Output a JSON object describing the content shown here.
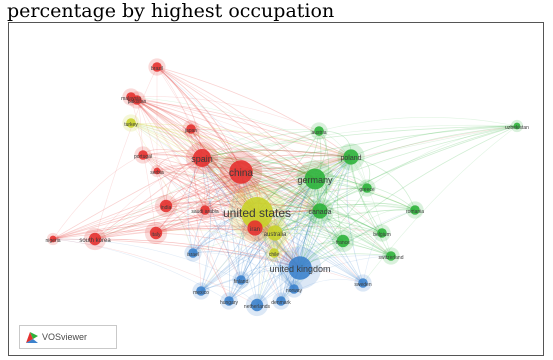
{
  "caption": "percentage by highest occupation",
  "logo": {
    "text": "VOSviewer",
    "icon": "vosviewer-logo-icon"
  },
  "colors": {
    "red": "#e4312f",
    "green": "#2eb23b",
    "blue": "#3c82cc",
    "yellow": "#c9d12a",
    "background": "#ffffff"
  },
  "network": {
    "nodes": [
      {
        "id": "united-states",
        "label": "united states",
        "cluster": "yellow",
        "weight": 10
      },
      {
        "id": "china",
        "label": "china",
        "cluster": "red",
        "weight": 7
      },
      {
        "id": "united-kingdom",
        "label": "united kingdom",
        "cluster": "blue",
        "weight": 7
      },
      {
        "id": "germany",
        "label": "germany",
        "cluster": "green",
        "weight": 6
      },
      {
        "id": "spain",
        "label": "spain",
        "cluster": "red",
        "weight": 5
      },
      {
        "id": "iran",
        "label": "iran",
        "cluster": "red",
        "weight": 4
      },
      {
        "id": "poland",
        "label": "poland",
        "cluster": "green",
        "weight": 4
      },
      {
        "id": "canada",
        "label": "canada",
        "cluster": "green",
        "weight": 4
      },
      {
        "id": "australia",
        "label": "australia",
        "cluster": "yellow",
        "weight": 4
      },
      {
        "id": "south-korea",
        "label": "south korea",
        "cluster": "red",
        "weight": 3
      },
      {
        "id": "india",
        "label": "india",
        "cluster": "red",
        "weight": 3
      },
      {
        "id": "italy",
        "label": "italy",
        "cluster": "red",
        "weight": 3
      },
      {
        "id": "france",
        "label": "france",
        "cluster": "green",
        "weight": 3
      },
      {
        "id": "netherlands",
        "label": "netherlands",
        "cluster": "blue",
        "weight": 3
      },
      {
        "id": "sweden",
        "label": "sweden",
        "cluster": "blue",
        "weight": 2
      },
      {
        "id": "pakistan",
        "label": "pakistan",
        "cluster": "red",
        "weight": 2
      },
      {
        "id": "malaysia",
        "label": "malaysia",
        "cluster": "red",
        "weight": 2
      },
      {
        "id": "turkey",
        "label": "turkey",
        "cluster": "yellow",
        "weight": 2
      },
      {
        "id": "japan",
        "label": "japan",
        "cluster": "red",
        "weight": 2
      },
      {
        "id": "brazil",
        "label": "brazil",
        "cluster": "red",
        "weight": 2
      },
      {
        "id": "portugal",
        "label": "portugal",
        "cluster": "red",
        "weight": 2
      },
      {
        "id": "greece",
        "label": "greece",
        "cluster": "green",
        "weight": 2
      },
      {
        "id": "norway",
        "label": "norway",
        "cluster": "blue",
        "weight": 2
      },
      {
        "id": "mexico",
        "label": "mexico",
        "cluster": "blue",
        "weight": 2
      },
      {
        "id": "belgium",
        "label": "belgium",
        "cluster": "green",
        "weight": 2
      },
      {
        "id": "hungary",
        "label": "hungary",
        "cluster": "blue",
        "weight": 2
      },
      {
        "id": "saudi-arabia",
        "label": "saudi arabia",
        "cluster": "red",
        "weight": 2
      },
      {
        "id": "romania",
        "label": "romania",
        "cluster": "green",
        "weight": 2
      },
      {
        "id": "switzerland",
        "label": "switzerland",
        "cluster": "green",
        "weight": 2
      },
      {
        "id": "denmark",
        "label": "denmark",
        "cluster": "blue",
        "weight": 2
      },
      {
        "id": "finland",
        "label": "finland",
        "cluster": "blue",
        "weight": 2
      },
      {
        "id": "austria",
        "label": "austria",
        "cluster": "green",
        "weight": 2
      },
      {
        "id": "israel",
        "label": "israel",
        "cluster": "blue",
        "weight": 2
      },
      {
        "id": "chile",
        "label": "chile",
        "cluster": "yellow",
        "weight": 2
      },
      {
        "id": "serbia",
        "label": "serbia",
        "cluster": "red",
        "weight": 1
      },
      {
        "id": "nigeria",
        "label": "nigeria",
        "cluster": "red",
        "weight": 1
      },
      {
        "id": "uzbekistan",
        "label": "uzbekistan",
        "cluster": "green",
        "weight": 1
      }
    ]
  }
}
